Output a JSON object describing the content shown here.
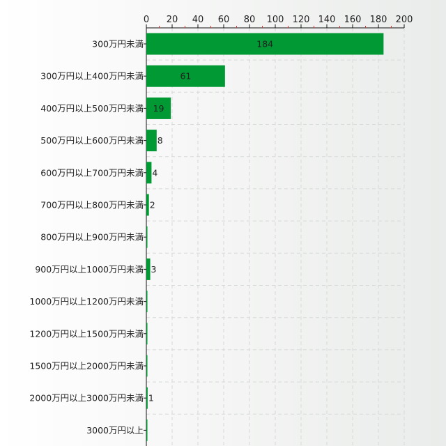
{
  "chart_data": {
    "type": "bar",
    "orientation": "horizontal",
    "categories": [
      "300万円未満",
      "300万円以上400万円未満",
      "400万円以上500万円未満",
      "500万円以上600万円未満",
      "600万円以上700万円未満",
      "700万円以上800万円未満",
      "800万円以上900万円未満",
      "900万円以上1000万円未満",
      "1000万円以上1200万円未満",
      "1200万円以上1500万円未満",
      "1500万円以上2000万円未満",
      "2000万円以上3000万円未満",
      "3000万円以上"
    ],
    "values": [
      184,
      61,
      19,
      8,
      4,
      2,
      0,
      3,
      0,
      0,
      0,
      1,
      0
    ],
    "value_labels": [
      "184",
      "61",
      "19",
      "8",
      "4",
      "2",
      "",
      "3",
      "",
      "",
      "",
      "1",
      ""
    ],
    "xlim": [
      0,
      200
    ],
    "x_ticks": [
      0,
      20,
      40,
      60,
      80,
      100,
      120,
      140,
      160,
      180,
      200
    ],
    "x_axis_position": "top",
    "grid": true,
    "bar_color": "#009933",
    "title": "",
    "xlabel": "",
    "ylabel": ""
  }
}
